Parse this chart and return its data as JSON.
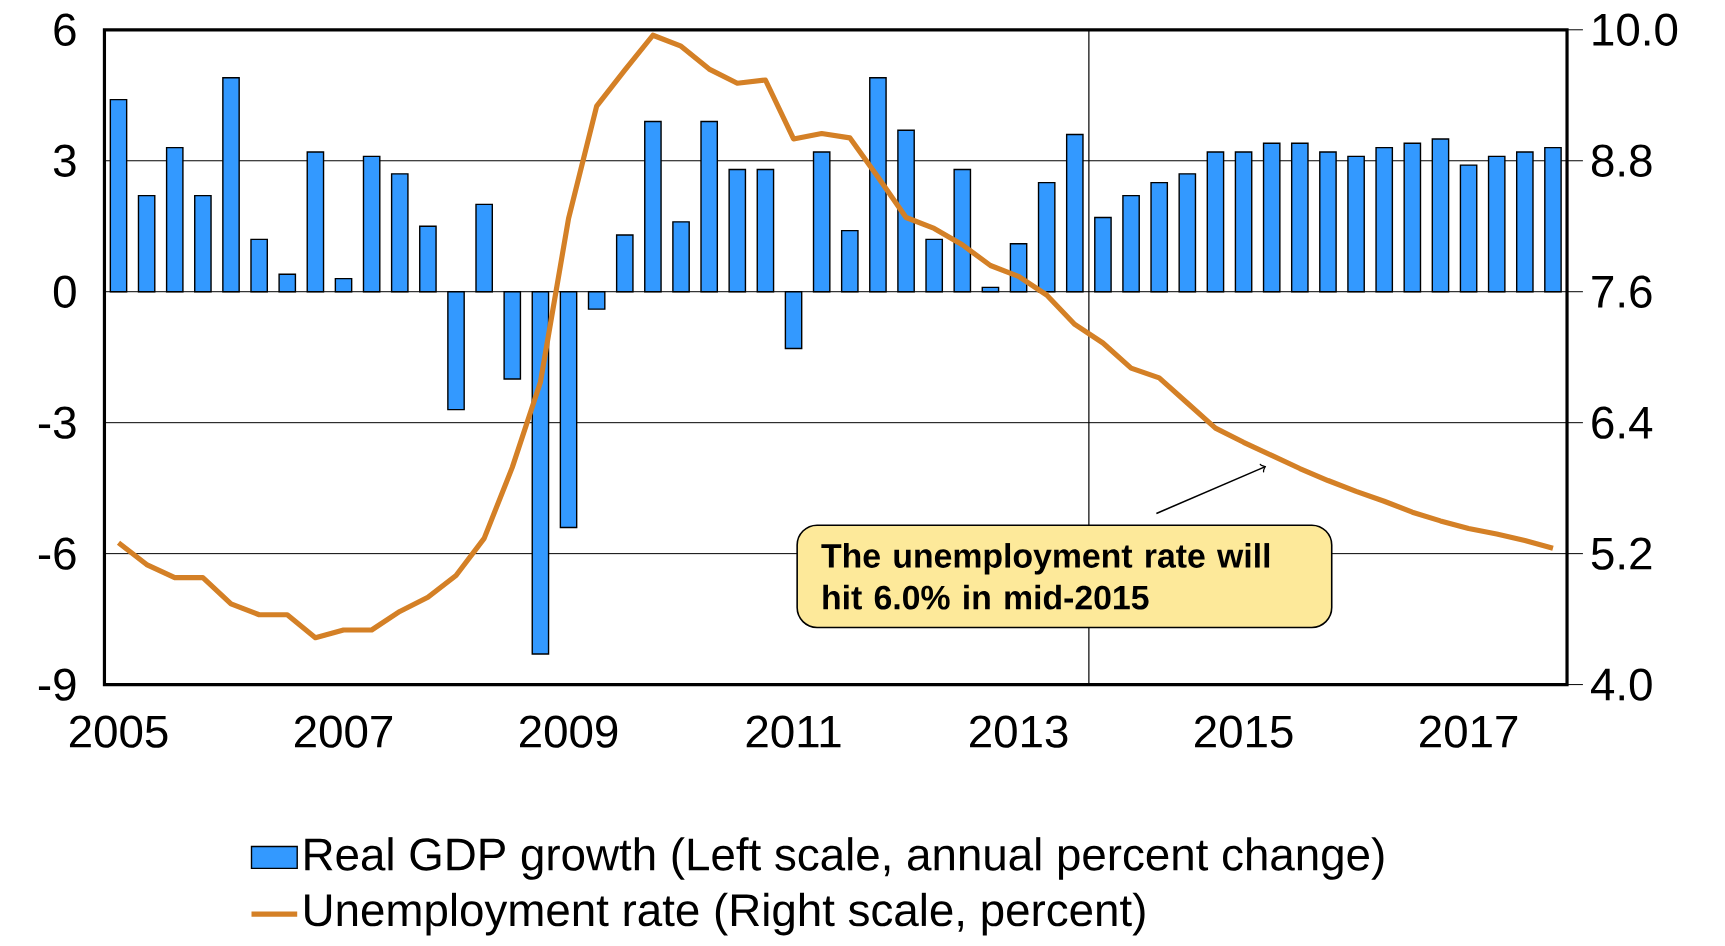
{
  "chart_data": {
    "type": "bar",
    "categories": [
      "2005",
      null,
      null,
      null,
      null,
      null,
      null,
      null,
      "2007",
      null,
      null,
      null,
      null,
      null,
      null,
      null,
      "2009",
      null,
      null,
      null,
      null,
      null,
      null,
      null,
      "2011",
      null,
      null,
      null,
      null,
      null,
      null,
      null,
      "2013",
      null,
      null,
      null,
      null,
      null,
      null,
      null,
      "2015",
      null,
      null,
      null,
      null,
      null,
      null,
      null,
      "2017",
      null,
      null,
      null
    ],
    "series": [
      {
        "name": "Real GDP growth (Left scale, annual percent change)",
        "color": "#3399ff",
        "values": [
          4.4,
          2.2,
          3.3,
          2.2,
          4.9,
          1.2,
          0.4,
          3.2,
          0.3,
          3.1,
          2.7,
          1.5,
          -2.7,
          2.0,
          -2.0,
          -8.3,
          -5.4,
          -0.4,
          1.3,
          3.9,
          1.6,
          3.9,
          2.8,
          2.8,
          -1.3,
          3.2,
          1.4,
          4.9,
          3.7,
          1.2,
          2.8,
          0.1,
          1.1,
          2.5,
          3.6,
          1.7,
          2.2,
          2.5,
          2.7,
          3.2,
          3.2,
          3.4,
          3.4,
          3.2,
          3.1,
          3.3,
          3.4,
          3.5,
          2.9,
          3.1,
          3.2,
          3.3
        ]
      },
      {
        "name": "Unemployment rate (Right scale, percent)",
        "type": "line",
        "axis": "y2",
        "color": "#d48026",
        "values": [
          5.3,
          5.1,
          4.98,
          4.98,
          4.74,
          4.64,
          4.64,
          4.43,
          4.5,
          4.5,
          4.67,
          4.8,
          5.0,
          5.34,
          5.99,
          6.77,
          8.27,
          9.3,
          9.63,
          9.95,
          9.85,
          9.64,
          9.51,
          9.54,
          9.0,
          9.05,
          9.01,
          8.65,
          8.28,
          8.18,
          8.03,
          7.84,
          7.74,
          7.57,
          7.3,
          7.13,
          6.9,
          6.81,
          6.58,
          6.35,
          6.22,
          6.1,
          5.98,
          5.87,
          5.77,
          5.68,
          5.58,
          5.5,
          5.43,
          5.38,
          5.32,
          5.25
        ]
      }
    ],
    "ylim": [
      -9,
      6
    ],
    "yticks": [
      -9,
      -6,
      -3,
      0,
      3,
      6
    ],
    "y2lim": [
      4.0,
      10.0
    ],
    "y2ticks": [
      {
        "value": 4.0,
        "label": "4.0"
      },
      {
        "value": 5.2,
        "label": "5.2"
      },
      {
        "value": 6.4,
        "label": "6.4"
      },
      {
        "value": 7.6,
        "label": "7.6"
      },
      {
        "value": 8.8,
        "label": "8.8"
      },
      {
        "value": 10.0,
        "label": "10.0"
      }
    ],
    "grid": "y",
    "legend": "bottom",
    "annotations": [
      "The unemployment rate will hit 6.0% in mid-2015"
    ]
  }
}
